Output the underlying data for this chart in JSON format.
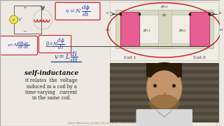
{
  "bg_color": "#ede9e2",
  "coil_color": "#e8508a",
  "coil_outline": "#b03060",
  "red_annotation": "#cc2222",
  "blue_eq": "#1a3a9a",
  "self_inductance_text": "self-inductance",
  "definition_lines": [
    "it relates  the  voltage",
    "induced in a coil by a",
    "time-varying   current",
    "in the same coil."
  ],
  "coil1_label": "Coil 1",
  "coil2_label": "Coil 2",
  "webcam_bg": "#6a6050",
  "webcam_stripe": "#7a7060",
  "face_color": "#c4956a",
  "face_shadow": "#a07048",
  "shirt_color": "#cccccc",
  "hair_color": "#2a1a08",
  "core_color": "#d8d8c0",
  "core_edge": "#aaaaaa",
  "wire_color": "#666666",
  "caption_color": "#888888"
}
